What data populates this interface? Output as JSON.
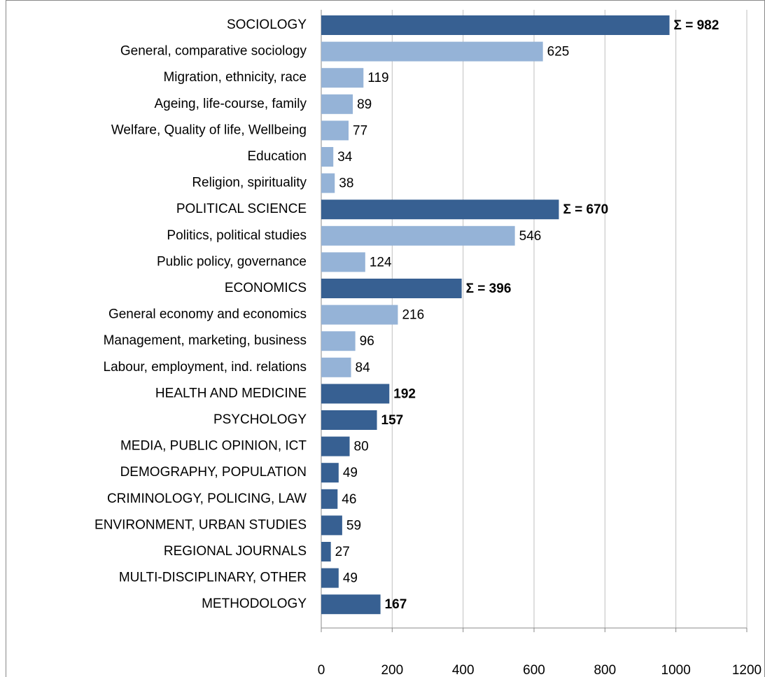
{
  "chart_data": {
    "type": "bar",
    "orientation": "horizontal",
    "categories": [
      "SOCIOLOGY",
      "General, comparative sociology",
      "Migration, ethnicity, race",
      "Ageing, life-course, family",
      "Welfare, Quality of life, Wellbeing",
      "Education",
      "Religion, spirituality",
      "POLITICAL SCIENCE",
      "Politics, political studies",
      "Public policy, governance",
      "ECONOMICS",
      "General economy and economics",
      "Management, marketing, business",
      "Labour, employment, ind. relations",
      "HEALTH AND MEDICINE",
      "PSYCHOLOGY",
      "MEDIA, PUBLIC OPINION, ICT",
      "DEMOGRAPHY, POPULATION",
      "CRIMINOLOGY, POLICING, LAW",
      "ENVIRONMENT, URBAN STUDIES",
      "REGIONAL JOURNALS",
      "MULTI-DISCIPLINARY, OTHER",
      "METHODOLOGY"
    ],
    "values": [
      982,
      625,
      119,
      89,
      77,
      34,
      38,
      670,
      546,
      124,
      396,
      216,
      96,
      84,
      192,
      157,
      80,
      49,
      46,
      59,
      27,
      49,
      167
    ],
    "value_labels": [
      "Σ = 982",
      "625",
      "119",
      "89",
      "77",
      "34",
      "38",
      "Σ = 670",
      "546",
      "124",
      "Σ = 396",
      "216",
      "96",
      "84",
      "192",
      "157",
      "80",
      "49",
      "46",
      "59",
      "27",
      "49",
      "167"
    ],
    "value_label_bold": [
      true,
      false,
      false,
      false,
      false,
      false,
      false,
      true,
      false,
      false,
      true,
      false,
      false,
      false,
      true,
      true,
      false,
      false,
      false,
      false,
      false,
      false,
      true
    ],
    "colors": [
      "#376092",
      "#95b3d7",
      "#95b3d7",
      "#95b3d7",
      "#95b3d7",
      "#95b3d7",
      "#95b3d7",
      "#376092",
      "#95b3d7",
      "#95b3d7",
      "#376092",
      "#95b3d7",
      "#95b3d7",
      "#95b3d7",
      "#376092",
      "#376092",
      "#376092",
      "#376092",
      "#376092",
      "#376092",
      "#376092",
      "#376092",
      "#376092"
    ],
    "xlim": [
      0,
      1200
    ],
    "xticks": [
      0,
      200,
      400,
      600,
      800,
      1000,
      1200
    ],
    "grid": true
  }
}
